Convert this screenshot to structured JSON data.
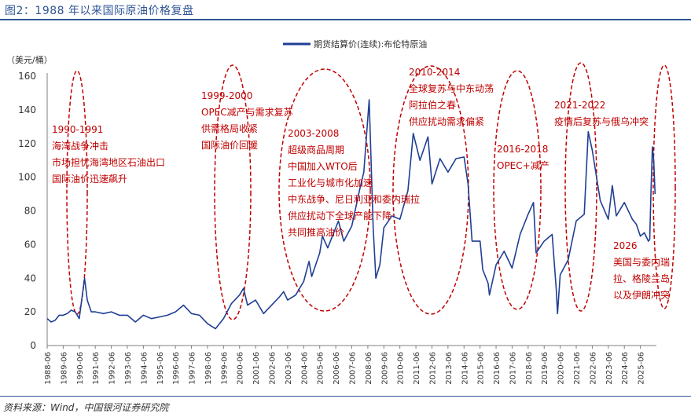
{
  "figure": {
    "title": "图2：1988 年以来国际原油价格复盘",
    "source": "资料来源：Wind，中国银河证券研究院"
  },
  "chart_data": {
    "type": "line",
    "ylabel": "（美元/桶）",
    "ylim": [
      0,
      160
    ],
    "yticks": [
      0,
      20,
      40,
      60,
      80,
      100,
      120,
      140,
      160
    ],
    "xlim": [
      "1988-06",
      "2026-06"
    ],
    "xticks": [
      "1988-06",
      "1989-06",
      "1990-06",
      "1991-06",
      "1992-06",
      "1993-06",
      "1994-06",
      "1995-06",
      "1996-06",
      "1997-06",
      "1998-06",
      "1999-06",
      "2000-06",
      "2001-06",
      "2002-06",
      "2003-06",
      "2004-06",
      "2005-06",
      "2006-06",
      "2007-06",
      "2008-06",
      "2009-06",
      "2010-06",
      "2011-06",
      "2012-06",
      "2013-06",
      "2014-06",
      "2015-06",
      "2016-06",
      "2017-06",
      "2018-06",
      "2019-06",
      "2020-06",
      "2021-06",
      "2022-06",
      "2023-06",
      "2024-06",
      "2025-06"
    ],
    "grid": false,
    "legend_position": "top-center",
    "colors": {
      "line": "#1f3f94",
      "annotation": "#c00000",
      "axis": "#7f7f7f"
    },
    "series": [
      {
        "name": "期货结算价(连续):布伦特原油",
        "x": [
          "1988-06",
          "1988-09",
          "1988-12",
          "1989-03",
          "1989-06",
          "1989-09",
          "1989-12",
          "1990-03",
          "1990-06",
          "1990-08",
          "1990-10",
          "1990-12",
          "1991-03",
          "1991-06",
          "1991-12",
          "1992-06",
          "1992-12",
          "1993-06",
          "1993-12",
          "1994-06",
          "1994-12",
          "1995-06",
          "1995-12",
          "1996-06",
          "1996-12",
          "1997-06",
          "1997-12",
          "1998-06",
          "1998-12",
          "1999-06",
          "1999-12",
          "2000-06",
          "2000-09",
          "2000-12",
          "2001-06",
          "2001-12",
          "2002-06",
          "2002-12",
          "2003-03",
          "2003-06",
          "2003-12",
          "2004-06",
          "2004-10",
          "2004-12",
          "2005-06",
          "2005-08",
          "2005-12",
          "2006-06",
          "2006-08",
          "2006-12",
          "2007-06",
          "2007-12",
          "2008-03",
          "2008-07",
          "2008-10",
          "2008-12",
          "2009-03",
          "2009-06",
          "2009-12",
          "2010-06",
          "2010-12",
          "2011-04",
          "2011-09",
          "2012-03",
          "2012-06",
          "2012-12",
          "2013-06",
          "2013-12",
          "2014-06",
          "2014-09",
          "2014-12",
          "2015-06",
          "2015-08",
          "2015-12",
          "2016-01",
          "2016-06",
          "2016-12",
          "2017-06",
          "2017-12",
          "2018-06",
          "2018-10",
          "2018-12",
          "2019-06",
          "2019-12",
          "2020-03",
          "2020-04",
          "2020-06",
          "2020-12",
          "2021-06",
          "2021-12",
          "2022-03",
          "2022-06",
          "2022-12",
          "2023-06",
          "2023-09",
          "2023-12",
          "2024-06",
          "2024-12",
          "2025-03",
          "2025-06",
          "2025-09",
          "2025-12",
          "2026-01",
          "2026-02",
          "2026-03",
          "2026-04",
          "2026-05"
        ],
        "y": [
          16,
          14,
          15,
          18,
          18,
          19,
          21,
          20,
          16,
          28,
          40,
          27,
          20,
          20,
          19,
          20,
          18,
          18,
          14,
          18,
          16,
          17,
          18,
          20,
          24,
          19,
          18,
          13,
          10,
          16,
          25,
          30,
          34,
          24,
          27,
          19,
          24,
          29,
          32,
          27,
          30,
          38,
          50,
          41,
          55,
          65,
          58,
          70,
          74,
          62,
          71,
          93,
          103,
          146,
          70,
          40,
          48,
          70,
          77,
          75,
          92,
          126,
          110,
          124,
          96,
          111,
          103,
          111,
          112,
          96,
          62,
          62,
          45,
          37,
          30,
          48,
          56,
          46,
          66,
          78,
          85,
          55,
          62,
          66,
          34,
          19,
          42,
          51,
          74,
          78,
          127,
          116,
          86,
          75,
          95,
          77,
          85,
          75,
          72,
          65,
          67,
          62,
          63,
          93,
          118,
          110,
          90
        ]
      }
    ],
    "annotations": [
      {
        "lines": [
          "1990-1991",
          "海湾战争冲击",
          "市场担忧海湾地区石油出口",
          "国际油价迅速飙升"
        ]
      },
      {
        "lines": [
          "1999-2000",
          "OPEC减产与需求复苏",
          "供需格局收紧",
          "国际油价回暖"
        ]
      },
      {
        "lines": [
          "2003-2008",
          "超级商品周期",
          "中国加入WTO后",
          "工业化与城市化加速",
          "中东战争、尼日利亚和委内瑞拉",
          "供应扰动下全球产能下降",
          "共同推高油价"
        ]
      },
      {
        "lines": [
          "2010-2014",
          "全球复苏与中东动荡",
          "阿拉伯之春",
          "供应扰动需求偏紧"
        ]
      },
      {
        "lines": [
          "2016-2018",
          "OPEC+减产"
        ]
      },
      {
        "lines": [
          "2021-2022",
          "疫情后复苏与俄乌冲突"
        ]
      },
      {
        "lines": [
          "2026",
          "美国与委内瑞",
          "拉、格陵兰岛",
          "以及伊朗冲突"
        ]
      }
    ]
  }
}
